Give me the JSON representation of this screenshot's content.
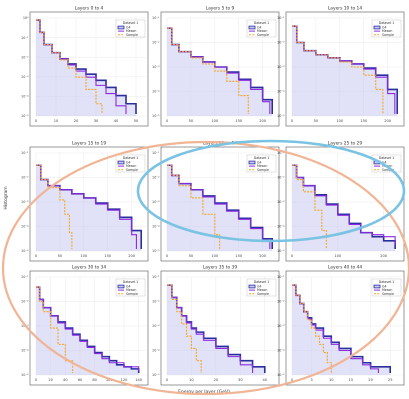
{
  "figure": {
    "ylabel": "Histogram",
    "xlabel": "Energy per layer (GeV)",
    "legend_title": "Dataset 1"
  },
  "overlay": {
    "highlight_color_blue": "#7ac3e3",
    "highlight_color_orange": "#f0b595"
  },
  "colors": {
    "g4": "#2b2f9e",
    "g4_fill": "#c9c9f0",
    "mesoe": "#8a2be2",
    "sample": "#f5a623"
  },
  "chart_data": [
    {
      "type": "line",
      "title": "Layers 0 to 4",
      "xlabel": "",
      "ylabel": "Histogram",
      "xticks": [
        "0",
        "10",
        "20",
        "30",
        "40",
        "50"
      ],
      "xlim": [
        0,
        55
      ],
      "yticks": [
        "10⁰",
        "10⁻¹",
        "10⁻²",
        "10⁻³",
        "10⁻⁴",
        "10⁻⁵"
      ],
      "ylog": true,
      "grid": true,
      "legend": "top-right",
      "series": [
        {
          "name": "G4",
          "x": [
            0,
            2,
            4,
            8,
            12,
            16,
            20,
            25,
            30,
            35,
            40,
            45,
            50
          ],
          "y": [
            -0.4,
            -1.0,
            -1.6,
            -2.0,
            -2.3,
            -2.55,
            -2.8,
            -3.05,
            -3.35,
            -3.7,
            -4.1,
            -4.5,
            -5.0
          ]
        },
        {
          "name": "Meson",
          "x": [
            0,
            2,
            4,
            8,
            12,
            16,
            20,
            25,
            30,
            35,
            40,
            45
          ],
          "y": [
            -0.4,
            -1.0,
            -1.6,
            -2.0,
            -2.3,
            -2.6,
            -2.9,
            -3.2,
            -3.6,
            -4.0,
            -4.6,
            -5.0
          ]
        },
        {
          "name": "Sample",
          "x": [
            0,
            2,
            4,
            8,
            12,
            16,
            20,
            25,
            30,
            33
          ],
          "y": [
            -0.4,
            -1.0,
            -1.6,
            -2.0,
            -2.35,
            -2.75,
            -3.2,
            -3.8,
            -4.5,
            -5.0
          ]
        }
      ]
    },
    {
      "type": "line",
      "title": "Layers 5 to 9",
      "xlabel": "",
      "ylabel": "",
      "xticks": [
        "0",
        "50",
        "100",
        "150",
        "200"
      ],
      "xlim": [
        0,
        230
      ],
      "yticks": [
        "10⁻¹",
        "10⁻²",
        "10⁻³",
        "10⁻⁴",
        "10⁻⁵"
      ],
      "ylog": true,
      "grid": true,
      "legend": "top-right",
      "series": [
        {
          "name": "G4",
          "x": [
            0,
            10,
            25,
            50,
            75,
            100,
            125,
            150,
            175,
            200,
            220
          ],
          "y": [
            -0.8,
            -1.6,
            -1.95,
            -2.2,
            -2.45,
            -2.7,
            -2.95,
            -3.3,
            -3.7,
            -4.3,
            -5.0
          ]
        },
        {
          "name": "Meson",
          "x": [
            0,
            10,
            25,
            50,
            75,
            100,
            125,
            150,
            175,
            200,
            215
          ],
          "y": [
            -0.8,
            -1.6,
            -1.95,
            -2.2,
            -2.45,
            -2.7,
            -3.0,
            -3.35,
            -3.8,
            -4.4,
            -5.0
          ]
        },
        {
          "name": "Sample",
          "x": [
            0,
            10,
            25,
            50,
            75,
            100,
            125,
            150,
            170
          ],
          "y": [
            -0.8,
            -1.6,
            -1.95,
            -2.25,
            -2.55,
            -2.9,
            -3.4,
            -4.1,
            -5.0
          ]
        }
      ]
    },
    {
      "type": "line",
      "title": "Layers 10 to 14",
      "xlabel": "",
      "ylabel": "",
      "xticks": [
        "0",
        "50",
        "100",
        "150",
        "200"
      ],
      "xlim": [
        0,
        230
      ],
      "yticks": [
        "10⁻¹",
        "10⁻²",
        "10⁻³",
        "10⁻⁴",
        "10⁻⁵"
      ],
      "ylog": true,
      "grid": true,
      "legend": "top-right",
      "series": [
        {
          "name": "G4",
          "x": [
            0,
            10,
            25,
            50,
            75,
            100,
            125,
            150,
            175,
            200,
            220
          ],
          "y": [
            -0.7,
            -1.5,
            -1.9,
            -2.1,
            -2.25,
            -2.4,
            -2.55,
            -2.75,
            -3.1,
            -3.8,
            -5.0
          ]
        },
        {
          "name": "Meson",
          "x": [
            0,
            10,
            25,
            50,
            75,
            100,
            125,
            150,
            175,
            200,
            215
          ],
          "y": [
            -0.7,
            -1.5,
            -1.9,
            -2.1,
            -2.25,
            -2.4,
            -2.55,
            -2.8,
            -3.2,
            -4.0,
            -5.0
          ]
        },
        {
          "name": "Sample",
          "x": [
            0,
            10,
            25,
            50,
            75,
            100,
            125,
            150,
            175,
            190
          ],
          "y": [
            -0.7,
            -1.5,
            -1.9,
            -2.1,
            -2.25,
            -2.45,
            -2.7,
            -3.1,
            -3.8,
            -5.0
          ]
        }
      ]
    },
    {
      "type": "line",
      "title": "Layers 15 to 19",
      "xlabel": "",
      "ylabel": "Histogram",
      "xticks": [
        "0",
        "50",
        "100",
        "150",
        "200"
      ],
      "xlim": [
        0,
        230
      ],
      "yticks": [
        "10⁻¹",
        "10⁻²",
        "10⁻³",
        "10⁻⁴",
        "10⁻⁵"
      ],
      "ylog": true,
      "grid": true,
      "legend": "top-right",
      "series": [
        {
          "name": "G4",
          "x": [
            0,
            10,
            25,
            50,
            75,
            100,
            125,
            150,
            175,
            200,
            220
          ],
          "y": [
            -0.9,
            -1.6,
            -1.9,
            -2.1,
            -2.3,
            -2.5,
            -2.75,
            -3.05,
            -3.45,
            -4.1,
            -5.0
          ]
        },
        {
          "name": "Meson",
          "x": [
            0,
            10,
            25,
            50,
            75,
            100,
            125,
            150,
            175,
            200,
            210
          ],
          "y": [
            -0.9,
            -1.6,
            -1.9,
            -2.1,
            -2.3,
            -2.5,
            -2.8,
            -3.1,
            -3.55,
            -4.3,
            -5.0
          ]
        },
        {
          "name": "Sample",
          "x": [
            0,
            10,
            25,
            50,
            60,
            70,
            75
          ],
          "y": [
            -0.9,
            -1.6,
            -2.0,
            -2.6,
            -3.3,
            -4.2,
            -5.0
          ]
        }
      ]
    },
    {
      "type": "line",
      "title": "Layers 20 to 24",
      "xlabel": "",
      "ylabel": "",
      "xticks": [
        "0",
        "50",
        "100",
        "150",
        "200"
      ],
      "xlim": [
        0,
        230
      ],
      "yticks": [
        "10⁻¹",
        "10⁻²",
        "10⁻³",
        "10⁻⁴",
        "10⁻⁵"
      ],
      "ylog": true,
      "grid": true,
      "legend": "top-right",
      "series": [
        {
          "name": "G4",
          "x": [
            0,
            10,
            25,
            50,
            75,
            100,
            125,
            150,
            175,
            200,
            220
          ],
          "y": [
            -0.9,
            -1.4,
            -1.8,
            -2.1,
            -2.4,
            -2.75,
            -3.1,
            -3.5,
            -3.95,
            -4.5,
            -5.0
          ]
        },
        {
          "name": "Meson",
          "x": [
            0,
            10,
            25,
            50,
            75,
            100,
            125,
            150,
            175,
            200,
            215
          ],
          "y": [
            -0.9,
            -1.4,
            -1.8,
            -2.1,
            -2.45,
            -2.8,
            -3.15,
            -3.55,
            -4.0,
            -4.6,
            -5.0
          ]
        },
        {
          "name": "Sample",
          "x": [
            0,
            10,
            25,
            50,
            75,
            100,
            110
          ],
          "y": [
            -0.9,
            -1.4,
            -1.9,
            -2.5,
            -3.3,
            -4.3,
            -5.0
          ]
        }
      ]
    },
    {
      "type": "line",
      "title": "Layers 25 to 29",
      "xlabel": "",
      "ylabel": "",
      "xticks": [
        "0",
        "100",
        "200"
      ],
      "xlim": [
        0,
        240
      ],
      "yticks": [
        "10⁻¹",
        "10⁻²",
        "10⁻³",
        "10⁻⁴",
        "10⁻⁵"
      ],
      "ylog": true,
      "grid": true,
      "legend": "top-right",
      "series": [
        {
          "name": "G4",
          "x": [
            0,
            10,
            25,
            50,
            75,
            100,
            125,
            150,
            175,
            200,
            225
          ],
          "y": [
            -0.9,
            -1.5,
            -1.9,
            -2.35,
            -2.8,
            -3.3,
            -3.75,
            -4.2,
            -4.4,
            -4.6,
            -5.0
          ]
        },
        {
          "name": "Meson",
          "x": [
            0,
            10,
            25,
            50,
            75,
            100,
            125,
            150,
            175,
            200,
            225
          ],
          "y": [
            -0.9,
            -1.5,
            -1.9,
            -2.4,
            -2.85,
            -3.35,
            -3.8,
            -4.2,
            -4.3,
            -4.4,
            -4.8
          ]
        },
        {
          "name": "Sample",
          "x": [
            0,
            10,
            25,
            50,
            65,
            75
          ],
          "y": [
            -0.9,
            -1.6,
            -2.2,
            -3.1,
            -4.1,
            -5.0
          ]
        }
      ]
    },
    {
      "type": "line",
      "title": "Layers 30 to 34",
      "xlabel": "",
      "ylabel": "Histogram",
      "xticks": [
        "0",
        "20",
        "40",
        "60",
        "80",
        "100",
        "120",
        "140"
      ],
      "xlim": [
        0,
        150
      ],
      "yticks": [
        "10⁻¹",
        "10⁻²",
        "10⁻³",
        "10⁻⁴",
        "10⁻⁵"
      ],
      "ylog": true,
      "grid": true,
      "legend": "top-right",
      "series": [
        {
          "name": "G4",
          "x": [
            0,
            5,
            10,
            20,
            30,
            40,
            50,
            60,
            70,
            80,
            90,
            100,
            110,
            120,
            130,
            140
          ],
          "y": [
            -0.8,
            -1.4,
            -1.8,
            -2.2,
            -2.5,
            -2.8,
            -3.1,
            -3.4,
            -3.7,
            -4.0,
            -4.2,
            -4.4,
            -4.6,
            -4.7,
            -4.8,
            -5.0
          ]
        },
        {
          "name": "Meson",
          "x": [
            0,
            5,
            10,
            20,
            30,
            40,
            50,
            60,
            70,
            80,
            90,
            100,
            120,
            140
          ],
          "y": [
            -0.8,
            -1.4,
            -1.8,
            -2.2,
            -2.55,
            -2.85,
            -3.15,
            -3.45,
            -3.75,
            -4.05,
            -4.3,
            -4.5,
            -4.7,
            -4.9
          ]
        },
        {
          "name": "Sample",
          "x": [
            0,
            5,
            10,
            20,
            30,
            40,
            50
          ],
          "y": [
            -0.8,
            -1.5,
            -2.0,
            -2.8,
            -3.6,
            -4.4,
            -5.0
          ]
        }
      ]
    },
    {
      "type": "line",
      "title": "Layers 35 to 39",
      "xlabel": "Energy per layer (GeV)",
      "ylabel": "",
      "xticks": [
        "0",
        "10",
        "20",
        "30",
        "40"
      ],
      "xlim": [
        0,
        45
      ],
      "yticks": [
        "10⁻¹",
        "10⁻²",
        "10⁻³",
        "10⁻⁴",
        "10⁻⁵"
      ],
      "ylog": true,
      "grid": true,
      "legend": "top-right",
      "series": [
        {
          "name": "G4",
          "x": [
            0,
            2,
            4,
            6,
            8,
            10,
            12,
            15,
            20,
            25,
            30,
            35,
            40
          ],
          "y": [
            -0.7,
            -1.3,
            -1.8,
            -2.2,
            -2.5,
            -2.8,
            -3.0,
            -3.3,
            -3.7,
            -4.1,
            -4.4,
            -4.7,
            -5.0
          ]
        },
        {
          "name": "Meson",
          "x": [
            0,
            2,
            4,
            6,
            8,
            10,
            12,
            15,
            20,
            25,
            30,
            35
          ],
          "y": [
            -0.7,
            -1.3,
            -1.8,
            -2.2,
            -2.55,
            -2.85,
            -3.1,
            -3.4,
            -3.8,
            -4.2,
            -4.6,
            -5.0
          ]
        },
        {
          "name": "Sample",
          "x": [
            0,
            2,
            4,
            6,
            8,
            10,
            12,
            14
          ],
          "y": [
            -0.7,
            -1.4,
            -2.0,
            -2.6,
            -3.2,
            -3.8,
            -4.4,
            -5.0
          ]
        }
      ]
    },
    {
      "type": "line",
      "title": "Layers 40 to 44",
      "xlabel": "",
      "ylabel": "",
      "xticks": [
        "0",
        "5",
        "10",
        "15",
        "20",
        "25"
      ],
      "xlim": [
        0,
        28
      ],
      "yticks": [
        "10⁻¹",
        "10⁻²",
        "10⁻³",
        "10⁻⁴",
        "10⁻⁵"
      ],
      "ylog": true,
      "grid": true,
      "legend": "top-right",
      "series": [
        {
          "name": "G4",
          "x": [
            0,
            1,
            2,
            3,
            4,
            5,
            6,
            8,
            10,
            12,
            15,
            18,
            20,
            25
          ],
          "y": [
            -0.7,
            -1.2,
            -1.6,
            -2.0,
            -2.3,
            -2.6,
            -2.8,
            -3.2,
            -3.5,
            -3.8,
            -4.2,
            -4.5,
            -4.7,
            -5.0
          ]
        },
        {
          "name": "Meson",
          "x": [
            0,
            1,
            2,
            3,
            4,
            5,
            6,
            8,
            10,
            12,
            15,
            18,
            20,
            22
          ],
          "y": [
            -0.7,
            -1.2,
            -1.6,
            -2.0,
            -2.35,
            -2.65,
            -2.9,
            -3.3,
            -3.6,
            -3.9,
            -4.3,
            -4.6,
            -4.8,
            -5.0
          ]
        },
        {
          "name": "Sample",
          "x": [
            0,
            1,
            2,
            3,
            4,
            5,
            6,
            7,
            8,
            9,
            10
          ],
          "y": [
            -0.7,
            -1.2,
            -1.6,
            -2.0,
            -2.4,
            -2.8,
            -3.2,
            -3.6,
            -4.0,
            -4.5,
            -5.0
          ]
        }
      ]
    }
  ]
}
